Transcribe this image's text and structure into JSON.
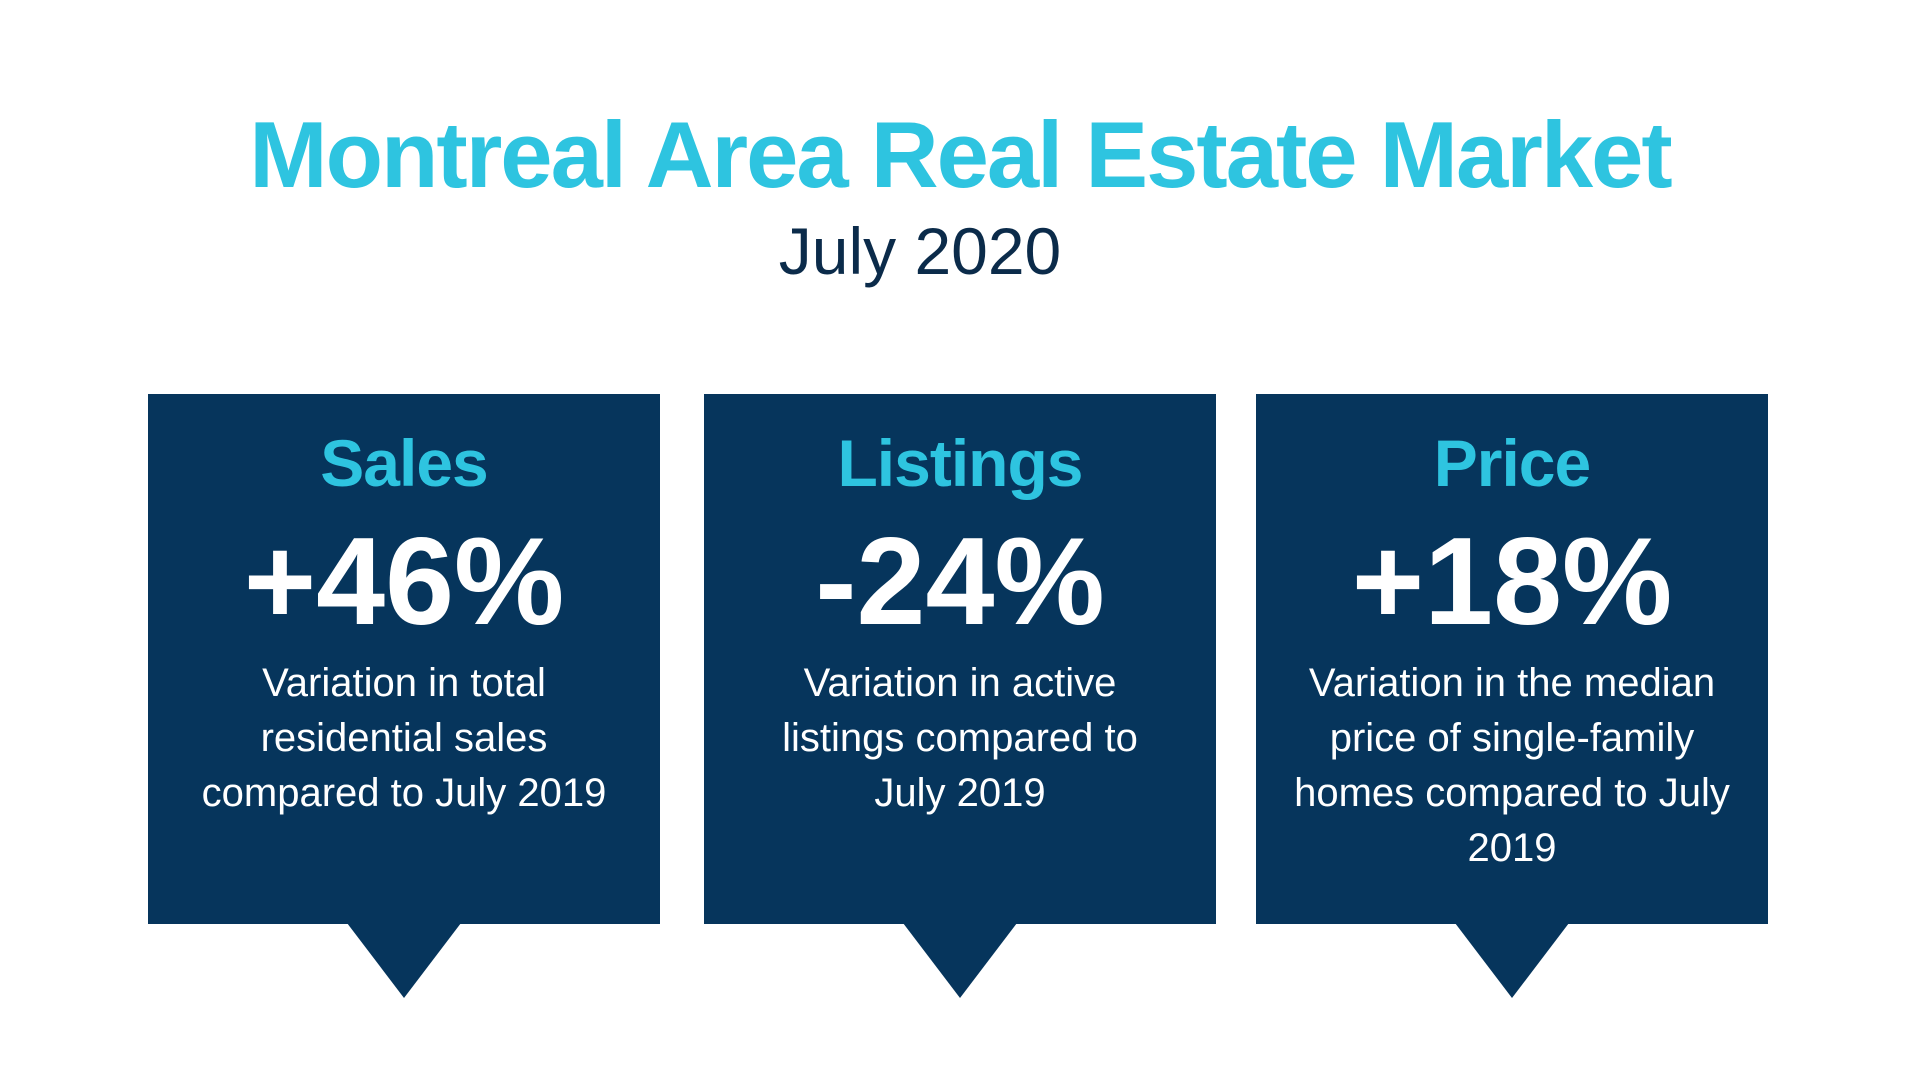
{
  "header": {
    "title": "Montreal Area Real Estate Market",
    "subtitle": "July 2020"
  },
  "colors": {
    "accent": "#2ec4e0",
    "navy": "#06355c",
    "subtitle": "#0b2b4a"
  },
  "cards": [
    {
      "label": "Sales",
      "value": "+46%",
      "description": "Variation in total residential sales compared to July 2019"
    },
    {
      "label": "Listings",
      "value": "-24%",
      "description": "Variation in active listings compared to July 2019"
    },
    {
      "label": "Price",
      "value": "+18%",
      "description": "Variation in the median price of single-family homes compared to July 2019"
    }
  ]
}
